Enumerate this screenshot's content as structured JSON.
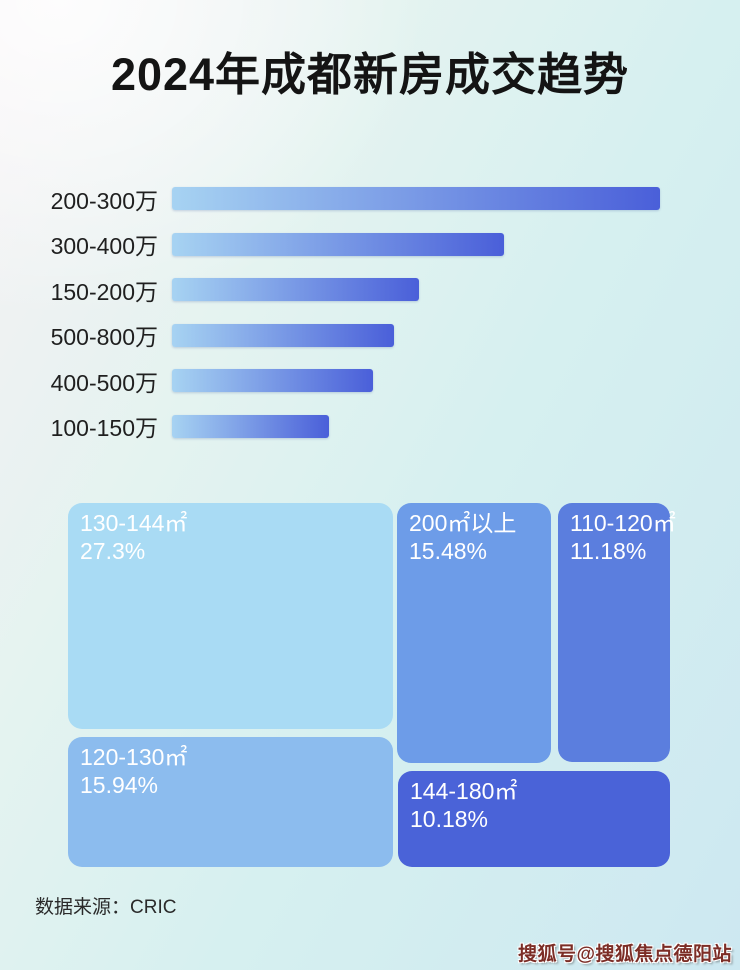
{
  "page": {
    "title": "2024年成都新房成交趋势",
    "source_label": "数据来源：CRIC",
    "watermark": "搜狐号@搜狐焦点德阳站"
  },
  "colors": {
    "title_color": "#141414",
    "bar_gradient_start": "#a7d3f2",
    "bar_gradient_end": "#4a5fd9",
    "bar_label_color": "#1f1f1f",
    "treemap_text_color": "#ffffff",
    "source_color": "#2a2a2a",
    "watermark_color": "#7c2d26",
    "background_top_left": "#f6f1f4",
    "background_mid": "#d6f0f0",
    "background_bottom": "#cde8f1"
  },
  "chart_data": [
    {
      "type": "bar",
      "orientation": "horizontal",
      "title": "",
      "categories": [
        "200-300万",
        "300-400万",
        "150-200万",
        "500-800万",
        "400-500万",
        "100-150万"
      ],
      "values_pct_of_longest": [
        100,
        68.0,
        50.6,
        45.5,
        41.2,
        32.2
      ],
      "value_labels_shown": false,
      "axis_shown": false,
      "grid": false
    },
    {
      "type": "treemap",
      "title": "",
      "cells": [
        {
          "label": "130-144㎡",
          "value_pct": 27.3,
          "value_text": "27.3%",
          "color": "#a9dbf4"
        },
        {
          "label": "120-130㎡",
          "value_pct": 15.94,
          "value_text": "15.94%",
          "color": "#8cbcee"
        },
        {
          "label": "200㎡以上",
          "value_pct": 15.48,
          "value_text": "15.48%",
          "color": "#6d9ce8"
        },
        {
          "label": "110-120㎡",
          "value_pct": 11.18,
          "value_text": "11.18%",
          "color": "#5b7ede"
        },
        {
          "label": "144-180㎡",
          "value_pct": 10.18,
          "value_text": "10.18%",
          "color": "#4a63d8"
        }
      ]
    }
  ]
}
